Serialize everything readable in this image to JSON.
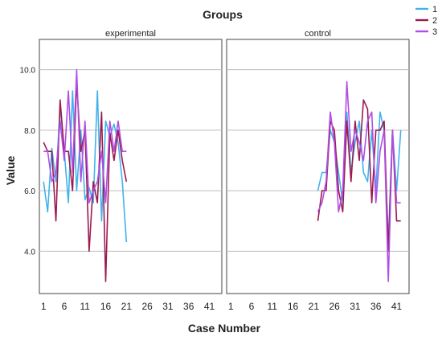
{
  "chart_data": {
    "type": "line",
    "title": "Groups",
    "xlabel": "Case Number",
    "ylabel": "Value",
    "ylim": [
      2.6,
      11.0
    ],
    "xlim": [
      0,
      44
    ],
    "y_ticks": [
      "4.0",
      "6.0",
      "8.0",
      "10.0"
    ],
    "y_tick_values": [
      4.0,
      6.0,
      8.0,
      10.0
    ],
    "x_ticks": [
      "1",
      "6",
      "11",
      "16",
      "21",
      "26",
      "31",
      "36",
      "41"
    ],
    "x_tick_values": [
      1,
      6,
      11,
      16,
      21,
      26,
      31,
      36,
      41
    ],
    "grid": true,
    "legend_position": "top-right",
    "panels": [
      {
        "label": "experimental",
        "series": [
          {
            "name": "1",
            "color": "#41b3ea",
            "x": [
              1,
              2,
              3,
              4,
              5,
              6,
              7,
              8,
              9,
              10,
              11,
              12,
              13,
              14,
              15,
              16,
              17,
              18,
              19,
              20,
              21
            ],
            "values": [
              6.3,
              5.3,
              7.4,
              6.3,
              8.8,
              7.3,
              5.6,
              9.3,
              6.0,
              8.0,
              5.7,
              6.1,
              5.6,
              9.3,
              5.0,
              8.3,
              7.8,
              8.2,
              7.6,
              6.3,
              4.3
            ]
          },
          {
            "name": "2",
            "color": "#9b1b4f",
            "x": [
              1,
              2,
              3,
              4,
              5,
              6,
              7,
              8,
              9,
              10,
              11,
              12,
              13,
              14,
              15,
              16,
              17,
              18,
              19,
              20,
              21
            ],
            "values": [
              7.6,
              7.3,
              7.3,
              5.0,
              9.0,
              7.3,
              7.3,
              6.0,
              9.6,
              7.3,
              8.0,
              4.0,
              6.3,
              5.6,
              8.6,
              3.0,
              7.9,
              7.0,
              8.0,
              7.0,
              6.3
            ]
          },
          {
            "name": "3",
            "color": "#b04ee5",
            "x": [
              1,
              2,
              3,
              4,
              5,
              6,
              7,
              8,
              9,
              10,
              11,
              12,
              13,
              14,
              15,
              16,
              17,
              18,
              19,
              20,
              21
            ],
            "values": [
              7.3,
              7.3,
              6.3,
              6.6,
              8.3,
              7.0,
              9.3,
              6.6,
              10.0,
              6.3,
              8.3,
              5.6,
              6.0,
              6.3,
              7.3,
              5.6,
              8.3,
              7.3,
              8.3,
              7.3,
              7.3
            ]
          }
        ]
      },
      {
        "label": "control",
        "series": [
          {
            "name": "1",
            "color": "#41b3ea",
            "x": [
              22,
              23,
              24,
              25,
              26,
              27,
              28,
              29,
              30,
              31,
              32,
              33,
              34,
              35,
              36,
              37,
              38,
              39,
              40,
              41,
              42
            ],
            "values": [
              6.0,
              6.6,
              6.6,
              8.0,
              7.6,
              6.6,
              5.6,
              8.6,
              6.6,
              7.6,
              8.3,
              6.6,
              6.3,
              8.0,
              6.0,
              8.6,
              8.0,
              4.3,
              8.0,
              6.0,
              8.0
            ]
          },
          {
            "name": "2",
            "color": "#9b1b4f",
            "x": [
              22,
              23,
              24,
              25,
              26,
              27,
              28,
              29,
              30,
              31,
              32,
              33,
              34,
              35,
              36,
              37,
              38,
              39,
              40,
              41,
              42
            ],
            "values": [
              5.0,
              6.0,
              6.0,
              8.3,
              8.0,
              6.0,
              5.3,
              8.3,
              6.3,
              8.3,
              7.0,
              9.0,
              8.7,
              5.6,
              8.0,
              8.0,
              8.3,
              4.0,
              8.0,
              5.0,
              5.0
            ]
          },
          {
            "name": "3",
            "color": "#b04ee5",
            "x": [
              22,
              23,
              24,
              25,
              26,
              27,
              28,
              29,
              30,
              31,
              32,
              33,
              34,
              35,
              36,
              37,
              38,
              39,
              40,
              41,
              42
            ],
            "values": [
              5.3,
              5.6,
              6.3,
              8.6,
              7.6,
              5.3,
              6.0,
              9.6,
              7.3,
              8.0,
              7.6,
              7.0,
              8.3,
              8.6,
              5.6,
              7.3,
              8.0,
              3.0,
              8.0,
              5.6,
              5.6
            ]
          }
        ]
      }
    ]
  }
}
